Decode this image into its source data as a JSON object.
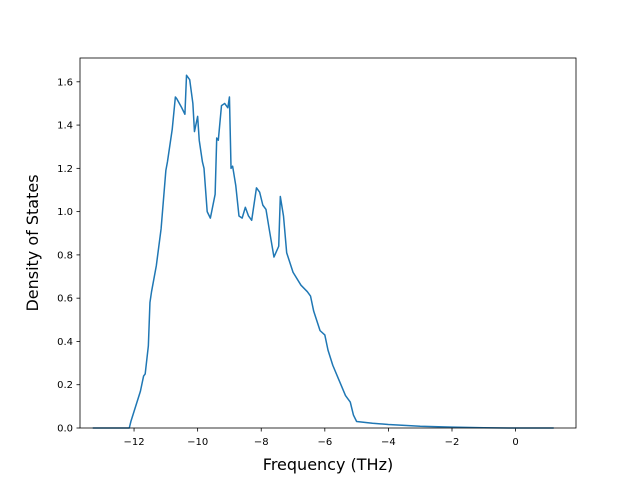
{
  "chart_data": {
    "type": "line",
    "title": "",
    "xlabel": "Frequency (THz)",
    "ylabel": "Density of States",
    "xlim": [
      -13.7,
      1.9
    ],
    "ylim": [
      0.0,
      1.71
    ],
    "xticks": [
      -12,
      -10,
      -8,
      -6,
      -4,
      -2,
      0
    ],
    "yticks": [
      0.0,
      0.2,
      0.4,
      0.6,
      0.8,
      1.0,
      1.2,
      1.4,
      1.6
    ],
    "xtick_labels": [
      "−12",
      "−10",
      "−8",
      "−6",
      "−4",
      "−2",
      "0"
    ],
    "ytick_labels": [
      "0.0",
      "0.2",
      "0.4",
      "0.6",
      "0.8",
      "1.0",
      "1.2",
      "1.4",
      "1.6"
    ],
    "grid": false,
    "legend": "none",
    "line_color": "#1f77b4",
    "series": [
      {
        "x": [
          -13.3,
          -12.15,
          -12.1,
          -11.95,
          -11.8,
          -11.7,
          -11.65,
          -11.55,
          -11.5,
          -11.45,
          -11.3,
          -11.15,
          -11.0,
          -10.95,
          -10.8,
          -10.7,
          -10.65,
          -10.5,
          -10.4,
          -10.35,
          -10.25,
          -10.15,
          -10.1,
          -10.0,
          -9.95,
          -9.85,
          -9.8,
          -9.7,
          -9.6,
          -9.45,
          -9.4,
          -9.35,
          -9.25,
          -9.15,
          -9.05,
          -9.0,
          -8.95,
          -8.9,
          -8.8,
          -8.7,
          -8.6,
          -8.5,
          -8.4,
          -8.3,
          -8.15,
          -8.05,
          -7.95,
          -7.85,
          -7.75,
          -7.6,
          -7.45,
          -7.4,
          -7.3,
          -7.2,
          -7.0,
          -6.75,
          -6.55,
          -6.45,
          -6.35,
          -6.15,
          -6.0,
          -5.9,
          -5.75,
          -5.55,
          -5.35,
          -5.2,
          -5.1,
          -5.0,
          -4.5,
          -4.0,
          -3.0,
          -2.0,
          -1.0,
          0.0,
          1.0,
          1.2
        ],
        "y": [
          0.0,
          0.0,
          0.03,
          0.1,
          0.17,
          0.24,
          0.25,
          0.38,
          0.58,
          0.63,
          0.75,
          0.92,
          1.19,
          1.23,
          1.38,
          1.53,
          1.52,
          1.48,
          1.45,
          1.63,
          1.61,
          1.5,
          1.37,
          1.44,
          1.33,
          1.23,
          1.2,
          1.0,
          0.97,
          1.08,
          1.34,
          1.33,
          1.49,
          1.5,
          1.48,
          1.53,
          1.2,
          1.21,
          1.12,
          0.98,
          0.97,
          1.02,
          0.98,
          0.96,
          1.11,
          1.09,
          1.03,
          1.01,
          0.92,
          0.79,
          0.84,
          1.07,
          0.98,
          0.81,
          0.72,
          0.66,
          0.63,
          0.61,
          0.54,
          0.45,
          0.43,
          0.36,
          0.29,
          0.22,
          0.15,
          0.12,
          0.06,
          0.03,
          0.022,
          0.016,
          0.008,
          0.004,
          0.001,
          0.0,
          0.0,
          0.0
        ]
      }
    ]
  }
}
